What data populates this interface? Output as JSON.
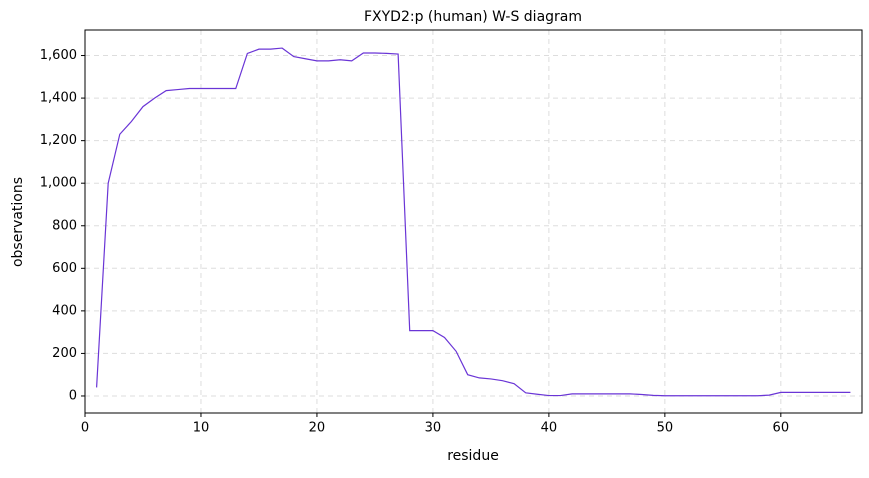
{
  "chart_data": {
    "type": "line",
    "title": "FXYD2:p (human) W-S diagram",
    "x_label": "residue",
    "y_label": "observations",
    "x": [
      1,
      2,
      3,
      4,
      5,
      6,
      7,
      8,
      9,
      10,
      11,
      12,
      13,
      14,
      15,
      16,
      17,
      18,
      19,
      20,
      21,
      22,
      23,
      24,
      25,
      26,
      27,
      28,
      29,
      30,
      31,
      32,
      33,
      34,
      35,
      36,
      37,
      38,
      39,
      40,
      41,
      42,
      43,
      44,
      45,
      46,
      47,
      48,
      49,
      50,
      51,
      52,
      53,
      54,
      55,
      56,
      57,
      58,
      59,
      60,
      61,
      62,
      63,
      64,
      65,
      66
    ],
    "series": [
      {
        "name": "observations",
        "color": "#6a35d6",
        "values": [
          40,
          1000,
          1230,
          1290,
          1360,
          1400,
          1435,
          1440,
          1445,
          1445,
          1445,
          1445,
          1445,
          1610,
          1630,
          1630,
          1635,
          1595,
          1585,
          1575,
          1575,
          1580,
          1575,
          1612,
          1612,
          1610,
          1607,
          307,
          307,
          307,
          275,
          210,
          100,
          85,
          80,
          72,
          58,
          15,
          8,
          2,
          2,
          10,
          10,
          10,
          10,
          10,
          10,
          7,
          3,
          1,
          1,
          1,
          1,
          1,
          1,
          1,
          1,
          1,
          4,
          17,
          17,
          17,
          17,
          17,
          17,
          17
        ]
      }
    ],
    "xlim": [
      0,
      67
    ],
    "ylim": [
      -80,
      1720
    ],
    "xticks": [
      0,
      10,
      20,
      30,
      40,
      50,
      60
    ],
    "yticks": [
      0,
      200,
      400,
      600,
      800,
      {
        "value": 1000,
        "label": "1,000"
      },
      {
        "value": 1200,
        "label": "1,200"
      },
      {
        "value": 1400,
        "label": "1,400"
      },
      {
        "value": 1600,
        "label": "1,600"
      }
    ],
    "grid": true
  }
}
